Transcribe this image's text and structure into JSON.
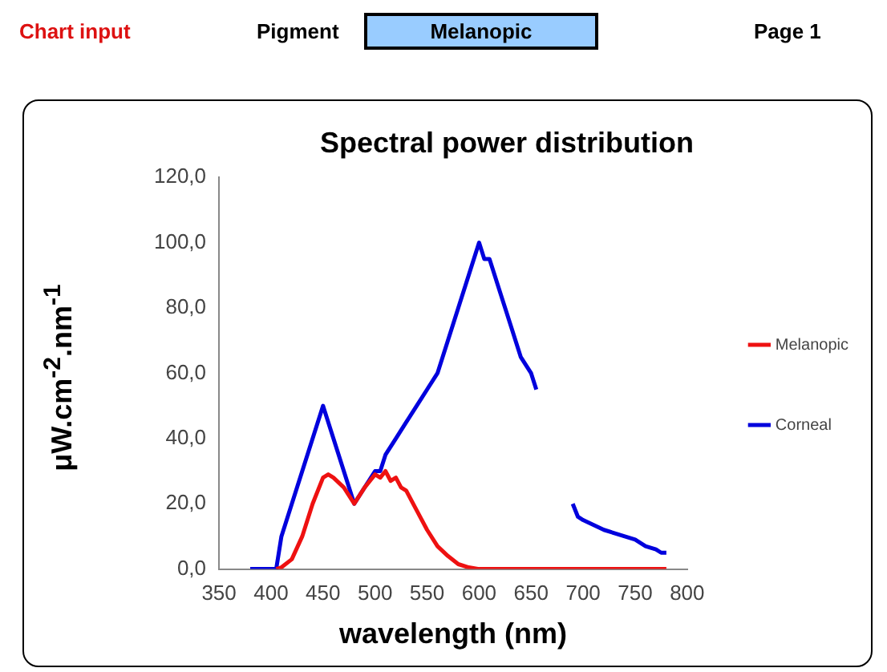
{
  "chart_data": {
    "type": "line",
    "title": "Spectral power distribution",
    "xlabel": "wavelength (nm)",
    "ylabel": "μW.cm$^{-2}$.nm$^{-1}$",
    "annotations": [
      "Chart input",
      "Pigment",
      "Melanopic",
      "Page 1"
    ],
    "xlim": [
      350,
      800
    ],
    "xticks": [
      350,
      400,
      450,
      500,
      550,
      600,
      650,
      700,
      750,
      800
    ],
    "ylim": [
      0,
      120
    ],
    "yticks": [
      {
        "value": 0,
        "label": "0,0"
      },
      {
        "value": 20,
        "label": "20,0"
      },
      {
        "value": 40,
        "label": "40,0"
      },
      {
        "value": 60,
        "label": "60,0"
      },
      {
        "value": 80,
        "label": "80,0"
      },
      {
        "value": 100,
        "label": "100,0"
      },
      {
        "value": 120,
        "label": "120,0"
      }
    ],
    "grid": false,
    "legend": "right",
    "marker": "none",
    "line_style": "solid",
    "series": [
      {
        "name": "Melanopic",
        "color": "#ee1111",
        "x": [
          405,
          410,
          420,
          430,
          440,
          450,
          455,
          460,
          470,
          480,
          490,
          500,
          505,
          510,
          515,
          520,
          525,
          530,
          540,
          550,
          560,
          570,
          580,
          590,
          600,
          650,
          700,
          750,
          780
        ],
        "values": [
          0,
          0.5,
          3,
          10,
          20,
          28,
          29,
          28,
          25,
          20,
          25,
          29,
          28,
          30,
          27,
          28,
          25,
          24,
          18,
          12,
          7,
          4,
          1.5,
          0.5,
          0,
          0,
          0,
          0,
          0
        ]
      },
      {
        "name": "Corneal",
        "color": "#0000dd",
        "x": [
          380,
          405,
          410,
          450,
          480,
          500,
          505,
          510,
          520,
          530,
          540,
          550,
          560,
          570,
          580,
          590,
          600,
          605,
          610,
          620,
          630,
          640,
          650,
          655,
          670,
          690,
          695,
          700,
          720,
          730,
          740,
          750,
          760,
          770,
          775,
          780
        ],
        "values": [
          0,
          0,
          10,
          50,
          20,
          30,
          30,
          35,
          40,
          45,
          50,
          55,
          60,
          70,
          80,
          90,
          100,
          95,
          95,
          85,
          75,
          65,
          60,
          55,
          null,
          20,
          16,
          15,
          12,
          11,
          10,
          9,
          7,
          6,
          5,
          5
        ]
      }
    ]
  }
}
